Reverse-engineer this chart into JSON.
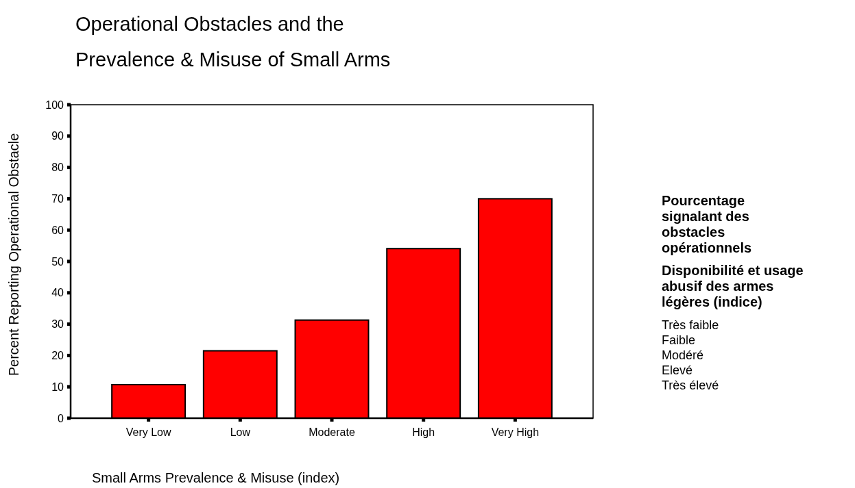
{
  "chart_data": {
    "type": "bar",
    "title": "Operational Obstacles and the Prevalence & Misuse of Small Arms",
    "xlabel": "Small Arms Prevalence & Misuse (index)",
    "ylabel": "Percent Reporting Operational Obstacle",
    "categories": [
      "Very Low",
      "Low",
      "Moderate",
      "High",
      "Very High"
    ],
    "values": [
      10.7,
      21.5,
      31.3,
      54.1,
      70.0
    ],
    "color": "#ff0000",
    "ylim": [
      0,
      100
    ],
    "yticks": [
      0,
      10,
      20,
      30,
      40,
      50,
      60,
      70,
      80,
      90,
      100
    ],
    "grid": false,
    "annotations": [
      "Pourcentage signalant des obstacles opérationnels",
      "Disponibilité et usage abusif des armes légères (indice)",
      "Très faible",
      "Faible",
      "Modéré",
      "Elevé",
      "Très élevé"
    ]
  }
}
